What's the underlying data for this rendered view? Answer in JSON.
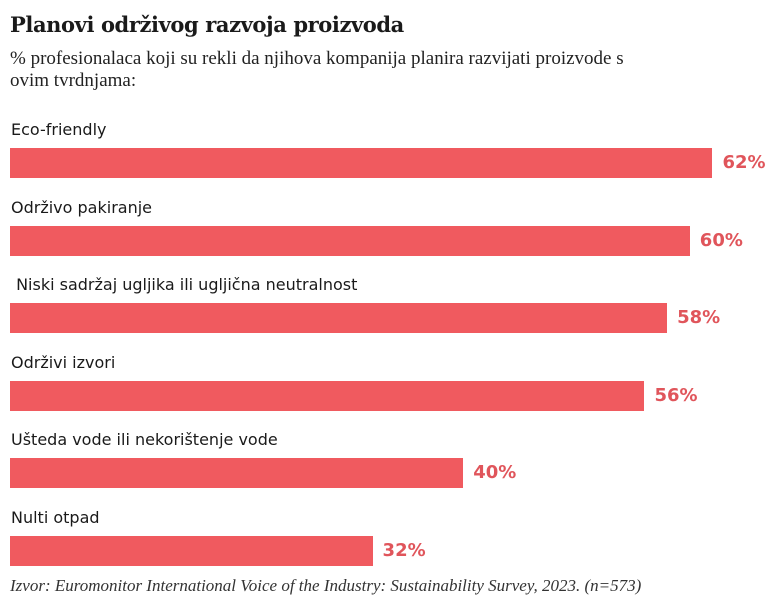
{
  "chart_data": {
    "type": "bar",
    "orientation": "horizontal",
    "title": "Planovi održivog razvoja proizvoda",
    "subtitle": "% profesionalaca koji su rekli da njihova kompanija planira razvijati proizvode s ovim tvrdnjama:",
    "categories": [
      "Eco-friendly",
      "Održivo pakiranje",
      " Niski sadržaj ugljika ili ugljična neutralnost",
      "Održivi izvori",
      "Ušteda vode ili nekorištenje vode",
      "Nulti otpad"
    ],
    "values": [
      62,
      60,
      58,
      56,
      40,
      32
    ],
    "value_labels": [
      "62%",
      "60%",
      "58%",
      "56%",
      "40%",
      "32%"
    ],
    "unit": "%",
    "source": "Izvor: Euromonitor International Voice of the Industry: Sustainability Survey, 2023. (n=573)",
    "colors": {
      "bar": "#f05a5f",
      "value_text": "#e0555b"
    }
  }
}
